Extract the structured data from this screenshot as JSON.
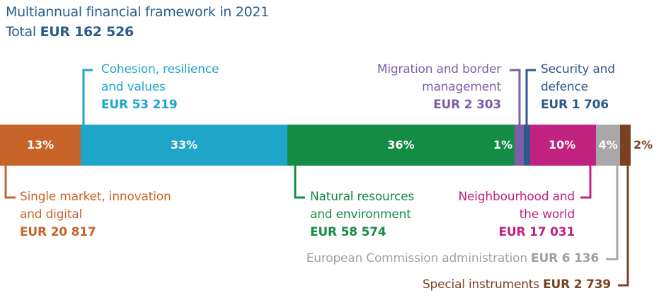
{
  "header": {
    "title": "Multiannual financial framework in 2021",
    "total_prefix": "Total",
    "total_value": "EUR 162 526"
  },
  "chart_data": {
    "type": "bar",
    "title": "Multiannual financial framework in 2021",
    "total": 162526,
    "unit": "EUR",
    "categories": [
      "Single market, innovation and digital",
      "Cohesion, resilience and values",
      "Natural resources and environment",
      "Migration and border management",
      "Security and defence",
      "Neighbourhood and the world",
      "European Commission administration",
      "Special instruments"
    ],
    "values": [
      20817,
      53219,
      58574,
      2303,
      1706,
      17031,
      6136,
      2739
    ],
    "percent_labels": [
      "13%",
      "33%",
      "36%",
      "1%",
      "1%",
      "10%",
      "4%",
      "2%"
    ],
    "amount_labels": [
      "EUR 20 817",
      "EUR 53 219",
      "EUR 58 574",
      "EUR 2 303",
      "EUR 1 706",
      "EUR 17 031",
      "EUR 6 136",
      "EUR 2 739"
    ],
    "colors": [
      "#c8642a",
      "#1ea5c8",
      "#148c46",
      "#7b5da8",
      "#2d5a8c",
      "#c0237f",
      "#a8a8a8",
      "#7a4221"
    ]
  },
  "labels": {
    "single_market": {
      "line1": "Single market, innovation",
      "line2": "and digital",
      "amount": "EUR 20 817"
    },
    "cohesion": {
      "line1": "Cohesion, resilience",
      "line2": "and values",
      "amount": "EUR 53 219"
    },
    "natural": {
      "line1": "Natural resources",
      "line2": "and environment",
      "amount": "EUR 58 574"
    },
    "migration": {
      "line1": "Migration and border",
      "line2": "management",
      "amount": "EUR 2 303"
    },
    "security": {
      "line1": "Security and",
      "line2": "defence",
      "amount": "EUR 1 706"
    },
    "neighbourhood": {
      "line1": "Neighbourhood  and",
      "line2": "the world",
      "amount": "EUR 17 031"
    },
    "admin": {
      "text": "European Commission administration",
      "amount": "EUR 6 136"
    },
    "special": {
      "text": "Special instruments",
      "amount": "EUR 2 739"
    }
  }
}
